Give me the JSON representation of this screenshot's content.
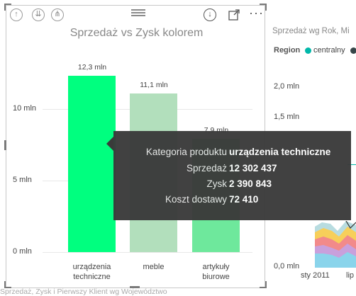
{
  "header": {
    "icons": [
      "drill-up-icon",
      "expand-next-level-icon",
      "drill-down-all-icon",
      "drill-down-mode-icon",
      "focus-mode-icon",
      "more-options-icon"
    ]
  },
  "chart_data": {
    "type": "bar",
    "title": "Sprzedaż vs Zysk kolorem",
    "categories": [
      "urządzenia techniczne",
      "meble",
      "artykuły biurowe"
    ],
    "category_lines": [
      [
        "urządzenia",
        "techniczne"
      ],
      [
        "meble"
      ],
      [
        "artykuły",
        "biurowe"
      ]
    ],
    "values": [
      12302437,
      11100000,
      7900000
    ],
    "data_labels": [
      "12,3 mln",
      "11,1 mln",
      "7,9 mln"
    ],
    "y_ticks": [
      {
        "value": 0,
        "label": "0 mln"
      },
      {
        "value": 5000000,
        "label": "5 mln"
      },
      {
        "value": 10000000,
        "label": "10 mln"
      }
    ],
    "ylim": [
      0,
      14000000
    ],
    "colors": [
      "#00ff7f",
      "#b2dfbc",
      "#6ee89c"
    ]
  },
  "tooltip": {
    "rows": [
      {
        "label": "Kategoria produktu",
        "value": "urządzenia techniczne"
      },
      {
        "label": "Sprzedaż",
        "value": "12 302 437"
      },
      {
        "label": "Zysk",
        "value": "2 390 843"
      },
      {
        "label": "Koszt dostawy",
        "value": "72 410"
      }
    ]
  },
  "background_chart": {
    "title": "Sprzedaż wg Rok, Mi",
    "legend_label": "Region",
    "legend_items": [
      {
        "name": "centralny",
        "color": "#01b8aa"
      },
      {
        "name": "",
        "color": "#374649"
      }
    ],
    "y_ticks": [
      "2,0 mln",
      "1,5 mln",
      "0,0 mln"
    ],
    "x_ticks": [
      "sty 2011",
      "lip"
    ]
  },
  "bottom_title": "Sprzedaż, Zysk i Pierwszy Klient wg Województwo"
}
